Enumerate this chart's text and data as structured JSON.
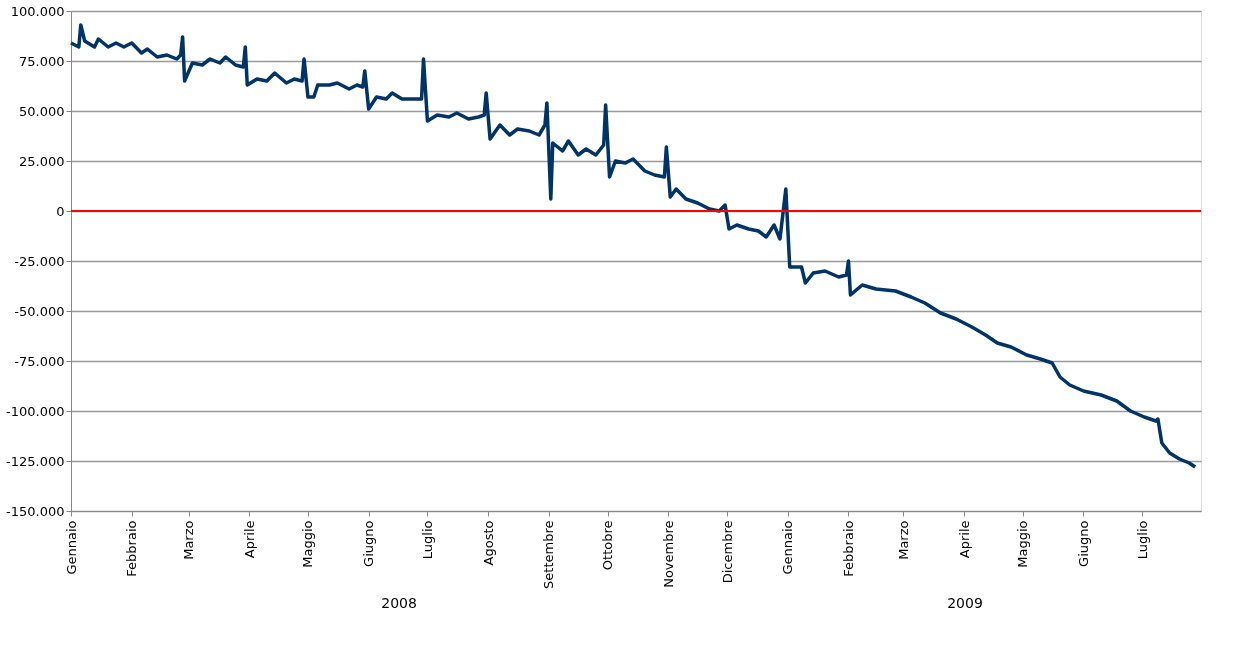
{
  "chart_data": {
    "type": "line",
    "x": [
      "2008-01-01",
      "2008-01-05",
      "2008-01-06",
      "2008-01-08",
      "2008-01-13",
      "2008-01-15",
      "2008-01-20",
      "2008-01-24",
      "2008-01-28",
      "2008-02-01",
      "2008-02-06",
      "2008-02-09",
      "2008-02-14",
      "2008-02-19",
      "2008-02-24",
      "2008-02-26",
      "2008-02-27",
      "2008-02-28",
      "2008-03-03",
      "2008-03-08",
      "2008-03-12",
      "2008-03-17",
      "2008-03-20",
      "2008-03-25",
      "2008-03-29",
      "2008-03-30",
      "2008-03-31",
      "2008-04-05",
      "2008-04-10",
      "2008-04-14",
      "2008-04-20",
      "2008-04-24",
      "2008-04-28",
      "2008-04-29",
      "2008-05-01",
      "2008-05-04",
      "2008-05-06",
      "2008-05-12",
      "2008-05-16",
      "2008-05-22",
      "2008-05-26",
      "2008-05-29",
      "2008-05-30",
      "2008-06-01",
      "2008-06-05",
      "2008-06-10",
      "2008-06-13",
      "2008-06-18",
      "2008-06-24",
      "2008-06-28",
      "2008-06-29",
      "2008-07-01",
      "2008-07-06",
      "2008-07-12",
      "2008-07-16",
      "2008-07-22",
      "2008-07-27",
      "2008-07-30",
      "2008-07-31",
      "2008-08-02",
      "2008-08-07",
      "2008-08-12",
      "2008-08-16",
      "2008-08-22",
      "2008-08-27",
      "2008-08-30",
      "2008-08-31",
      "2008-09-02",
      "2008-09-03",
      "2008-09-08",
      "2008-09-11",
      "2008-09-16",
      "2008-09-20",
      "2008-09-25",
      "2008-09-29",
      "2008-09-30",
      "2008-10-02",
      "2008-10-05",
      "2008-10-10",
      "2008-10-14",
      "2008-10-20",
      "2008-10-25",
      "2008-10-30",
      "2008-10-31",
      "2008-11-02",
      "2008-11-05",
      "2008-11-10",
      "2008-11-16",
      "2008-11-22",
      "2008-11-27",
      "2008-11-30",
      "2008-12-02",
      "2008-12-06",
      "2008-12-12",
      "2008-12-17",
      "2008-12-21",
      "2008-12-25",
      "2008-12-28",
      "2008-12-31",
      "2009-01-02",
      "2009-01-08",
      "2009-01-10",
      "2009-01-14",
      "2009-01-20",
      "2009-01-27",
      "2009-01-31",
      "2009-02-01",
      "2009-02-02",
      "2009-02-08",
      "2009-02-15",
      "2009-02-25",
      "2009-03-05",
      "2009-03-12",
      "2009-03-20",
      "2009-03-28",
      "2009-04-05",
      "2009-04-12",
      "2009-04-18",
      "2009-04-25",
      "2009-05-03",
      "2009-05-10",
      "2009-05-16",
      "2009-05-20",
      "2009-05-25",
      "2009-06-01",
      "2009-06-10",
      "2009-06-18",
      "2009-06-25",
      "2009-07-02",
      "2009-07-08",
      "2009-07-09",
      "2009-07-11",
      "2009-07-15",
      "2009-07-20",
      "2009-07-25",
      "2009-07-28"
    ],
    "series": [
      {
        "color": "#003366",
        "values": [
          84000,
          82000,
          93000,
          85000,
          82000,
          86000,
          82000,
          84000,
          82000,
          84000,
          79000,
          81000,
          77000,
          78000,
          76000,
          78000,
          87000,
          65000,
          74000,
          73000,
          76000,
          74000,
          77000,
          73000,
          72000,
          82000,
          63000,
          66000,
          65000,
          69000,
          64000,
          66000,
          65000,
          76000,
          57000,
          57000,
          63000,
          63000,
          64000,
          61000,
          63000,
          62000,
          70000,
          51000,
          57000,
          56000,
          59000,
          56000,
          56000,
          56000,
          76000,
          45000,
          48000,
          47000,
          49000,
          46000,
          47000,
          48000,
          59000,
          36000,
          43000,
          38000,
          41000,
          40000,
          38000,
          43000,
          54000,
          6000,
          34000,
          30000,
          35000,
          28000,
          31000,
          28000,
          33000,
          53000,
          17000,
          25000,
          24000,
          26000,
          20000,
          18000,
          17000,
          32000,
          7000,
          11000,
          6000,
          4000,
          1000,
          0,
          3000,
          -9000,
          -7000,
          -9000,
          -10000,
          -13000,
          -7000,
          -14000,
          11000,
          -28000,
          -28000,
          -36000,
          -31000,
          -30000,
          -33000,
          -32000,
          -25000,
          -42000,
          -37000,
          -39000,
          -40000,
          -43000,
          -46000,
          -51000,
          -54000,
          -58000,
          -62000,
          -66000,
          -68000,
          -72000,
          -74000,
          -76000,
          -83000,
          -87000,
          -90000,
          -92000,
          -95000,
          -100000,
          -103000,
          -105000,
          -104000,
          -116000,
          -121000,
          -124000,
          -126000,
          -128000
        ]
      }
    ],
    "xlim": [
      "2008-01-01",
      "2009-07-31"
    ],
    "xticks": [
      {
        "value": "2008-01-01",
        "label": "Gennaio"
      },
      {
        "value": "2008-02-01",
        "label": "Febbraio"
      },
      {
        "value": "2008-03-01",
        "label": "Marzo"
      },
      {
        "value": "2008-04-01",
        "label": "Aprile"
      },
      {
        "value": "2008-05-01",
        "label": "Maggio"
      },
      {
        "value": "2008-06-01",
        "label": "Giugno"
      },
      {
        "value": "2008-07-01",
        "label": "Luglio"
      },
      {
        "value": "2008-08-01",
        "label": "Agosto"
      },
      {
        "value": "2008-09-01",
        "label": "Settembre"
      },
      {
        "value": "2008-10-01",
        "label": "Ottobre"
      },
      {
        "value": "2008-11-01",
        "label": "Novembre"
      },
      {
        "value": "2008-12-01",
        "label": "Dicembre"
      },
      {
        "value": "2009-01-01",
        "label": "Gennaio"
      },
      {
        "value": "2009-02-01",
        "label": "Febbraio"
      },
      {
        "value": "2009-03-01",
        "label": "Marzo"
      },
      {
        "value": "2009-04-01",
        "label": "Aprile"
      },
      {
        "value": "2009-05-01",
        "label": "Maggio"
      },
      {
        "value": "2009-06-01",
        "label": "Giugno"
      },
      {
        "value": "2009-07-01",
        "label": "Luglio"
      }
    ],
    "ylim": [
      -150000,
      100000
    ],
    "yticks": [
      {
        "value": -150000,
        "label": "-150.000"
      },
      {
        "value": -125000,
        "label": "-125.000"
      },
      {
        "value": -100000,
        "label": "-100.000"
      },
      {
        "value": -75000,
        "label": "-75.000"
      },
      {
        "value": -50000,
        "label": "-50.000"
      },
      {
        "value": -25000,
        "label": "-25.000"
      },
      {
        "value": 0,
        "label": "0"
      },
      {
        "value": 25000,
        "label": "25.000"
      },
      {
        "value": 50000,
        "label": "50.000"
      },
      {
        "value": 75000,
        "label": "75.000"
      },
      {
        "value": 100000,
        "label": "100.000"
      }
    ],
    "grid": "y",
    "ref_lines": [
      {
        "axis": "y",
        "value": 0,
        "color": "#ff0000"
      }
    ],
    "annotations": [
      "2008",
      "2009"
    ],
    "line_style": "solid",
    "marker": "none"
  }
}
